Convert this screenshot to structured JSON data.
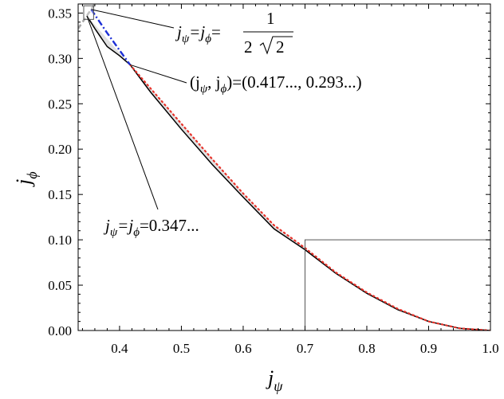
{
  "chart_data": {
    "type": "line",
    "title": "",
    "xlabel": "j",
    "xlabel_sub": "ψ",
    "ylabel": "j",
    "ylabel_sub": "ϕ",
    "xlim": [
      0.333,
      1.0
    ],
    "ylim": [
      0.0,
      0.36
    ],
    "xticks": [
      "0.4",
      "0.5",
      "0.6",
      "0.7",
      "0.8",
      "0.9",
      "1.0"
    ],
    "xtick_values": [
      0.4,
      0.5,
      0.6,
      0.7,
      0.8,
      0.9,
      1.0
    ],
    "yticks": [
      "0.00",
      "0.05",
      "0.10",
      "0.15",
      "0.20",
      "0.25",
      "0.30",
      "0.35"
    ],
    "ytick_values": [
      0.0,
      0.05,
      0.1,
      0.15,
      0.2,
      0.25,
      0.3,
      0.35
    ],
    "grid": false,
    "series": [
      {
        "style": "solid",
        "color": "#000000",
        "x": [
          0.347,
          0.36,
          0.38,
          0.4,
          0.417,
          0.45,
          0.5,
          0.55,
          0.6,
          0.65,
          0.7,
          0.75,
          0.8,
          0.85,
          0.9,
          0.95,
          1.0
        ],
        "y": [
          0.347,
          0.333,
          0.313,
          0.303,
          0.293,
          0.263,
          0.222,
          0.183,
          0.147,
          0.112,
          0.089,
          0.063,
          0.041,
          0.023,
          0.01,
          0.0025,
          0.0
        ]
      },
      {
        "style": "dotted",
        "color": "#e8322a",
        "x": [
          0.417,
          0.45,
          0.5,
          0.55,
          0.6,
          0.65,
          0.7,
          0.75,
          0.8,
          0.85,
          0.9,
          0.95,
          1.0
        ],
        "y": [
          0.293,
          0.267,
          0.228,
          0.189,
          0.151,
          0.116,
          0.091,
          0.064,
          0.042,
          0.024,
          0.01,
          0.0025,
          0.0
        ]
      },
      {
        "style": "dashdot",
        "color": "#1c2fd6",
        "x": [
          0.354,
          0.38,
          0.4,
          0.417
        ],
        "y": [
          0.354,
          0.328,
          0.309,
          0.293
        ]
      },
      {
        "style": "dashed",
        "color": "#a6a6a6",
        "x": [
          0.333,
          0.35,
          0.36
        ],
        "y": [
          0.333,
          0.35,
          0.36
        ]
      }
    ],
    "boxes": [
      {
        "x0": 0.7,
        "x1": 1.0,
        "y0": 0.0,
        "y1": 0.1
      },
      {
        "x0": 0.342,
        "x1": 0.358,
        "y0": 0.343,
        "y1": 0.358
      }
    ],
    "annotations": [
      {
        "pre": "j",
        "sub1": "ψ",
        "mid": "=j",
        "sub2": "ϕ",
        "post": "=",
        "frac_num": "1",
        "frac_den": "2",
        "frac_root": "2",
        "point": [
          0.354,
          0.354
        ]
      },
      {
        "pre": "(j",
        "sub1": "ψ",
        "mid": ", j",
        "sub2": "ϕ",
        "post": ")=(0.417..., 0.293...)",
        "point": [
          0.417,
          0.293
        ]
      },
      {
        "pre": "j",
        "sub1": "ψ",
        "mid": "=j",
        "sub2": "ϕ",
        "post": "=0.347...",
        "point": [
          0.347,
          0.347
        ]
      }
    ]
  }
}
